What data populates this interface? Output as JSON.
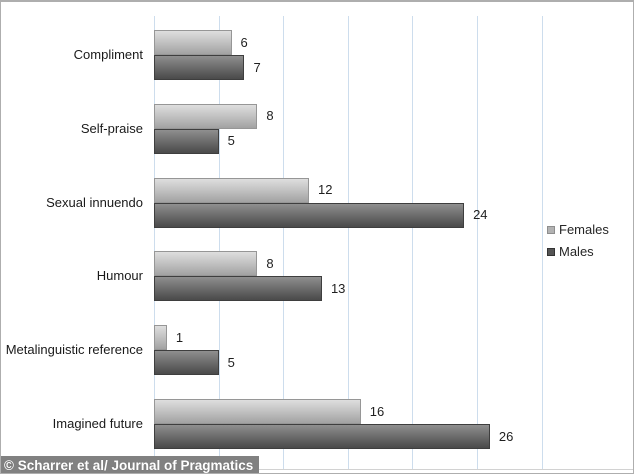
{
  "chart_data": {
    "type": "bar",
    "orientation": "horizontal",
    "title": "",
    "xlabel": "",
    "ylabel": "",
    "categories": [
      "Compliment",
      "Self-praise",
      "Sexual innuendo",
      "Humour",
      "Metalinguistic reference",
      "Imagined future"
    ],
    "series": [
      {
        "name": "Females",
        "values": [
          6,
          8,
          12,
          8,
          1,
          16
        ],
        "color_top": "#dedede",
        "color_mid": "#c2c2c2",
        "color_bottom": "#a2a2a2"
      },
      {
        "name": "Males",
        "values": [
          7,
          5,
          24,
          13,
          5,
          26
        ],
        "color_top": "#8f8f8f",
        "color_mid": "#6d6d6d",
        "color_bottom": "#4a4a4a"
      }
    ],
    "value_labels_shown": true,
    "xlim": [
      0,
      30
    ],
    "grid_interval": 5,
    "grid": true,
    "gridline_color": "#cddded",
    "legend_position": "right"
  },
  "legend": {
    "items": [
      {
        "label": "Females",
        "swatch_color": "#b2b2b2",
        "swatch_border": "#8e8e8e"
      },
      {
        "label": "Males",
        "swatch_color": "#545454",
        "swatch_border": "#333333"
      }
    ]
  },
  "caption": {
    "text": "© Scharrer et al/ Journal of Pragmatics"
  }
}
